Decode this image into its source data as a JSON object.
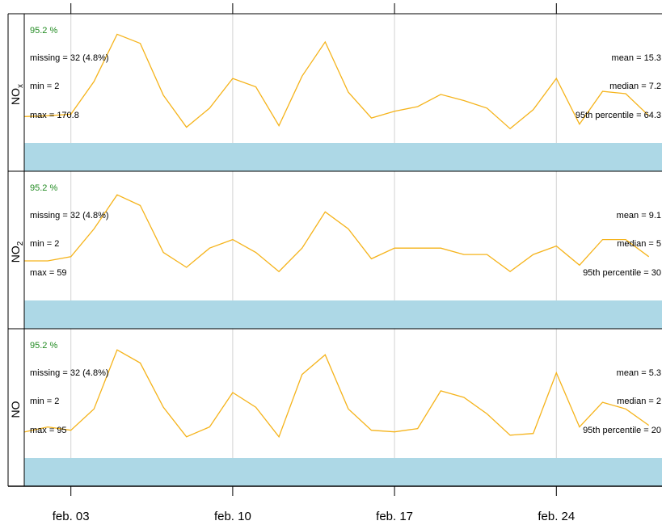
{
  "chart_data": {
    "type": "line",
    "x_unit": "date",
    "x_ticks": [
      {
        "x": "2022-02-03",
        "label": "feb. 03"
      },
      {
        "x": "2022-02-10",
        "label": "feb. 10"
      },
      {
        "x": "2022-02-17",
        "label": "feb. 17"
      },
      {
        "x": "2022-02-24",
        "label": "feb. 24"
      }
    ],
    "x_range": [
      "2022-02-01",
      "2022-02-28"
    ],
    "grid": true,
    "colors": {
      "line": "#f5b31a",
      "missing_bar": "#add8e6",
      "pct_text": "#228b22",
      "grid": "#d3d3d3"
    },
    "panels": [
      {
        "name": "NO",
        "sub": "x",
        "coverage": "95.2 %",
        "stats_left": [
          "missing = 32 (4.8%)",
          "min = 2",
          "max = 170.8"
        ],
        "stats_right": [
          "mean = 15.3",
          "median = 7.2",
          "95th percentile = 64.3"
        ],
        "series": {
          "name": "NOx",
          "points": [
            {
              "x": "2022-02-01",
              "y": 22
            },
            {
              "x": "2022-02-02",
              "y": 23
            },
            {
              "x": "2022-02-03",
              "y": 25
            },
            {
              "x": "2022-02-04",
              "y": 68
            },
            {
              "x": "2022-02-05",
              "y": 130
            },
            {
              "x": "2022-02-06",
              "y": 118
            },
            {
              "x": "2022-02-07",
              "y": 50
            },
            {
              "x": "2022-02-08",
              "y": 8
            },
            {
              "x": "2022-02-09",
              "y": 33
            },
            {
              "x": "2022-02-10",
              "y": 72
            },
            {
              "x": "2022-02-11",
              "y": 61
            },
            {
              "x": "2022-02-12",
              "y": 10
            },
            {
              "x": "2022-02-13",
              "y": 75
            },
            {
              "x": "2022-02-14",
              "y": 120
            },
            {
              "x": "2022-02-15",
              "y": 54
            },
            {
              "x": "2022-02-16",
              "y": 20
            },
            {
              "x": "2022-02-17",
              "y": 29
            },
            {
              "x": "2022-02-18",
              "y": 35
            },
            {
              "x": "2022-02-19",
              "y": 51
            },
            {
              "x": "2022-02-20",
              "y": 43
            },
            {
              "x": "2022-02-21",
              "y": 33
            },
            {
              "x": "2022-02-22",
              "y": 6
            },
            {
              "x": "2022-02-23",
              "y": 31
            },
            {
              "x": "2022-02-24",
              "y": 72
            },
            {
              "x": "2022-02-25",
              "y": 12
            },
            {
              "x": "2022-02-26",
              "y": 55
            },
            {
              "x": "2022-02-27",
              "y": 52
            },
            {
              "x": "2022-02-28",
              "y": 23
            }
          ]
        }
      },
      {
        "name": "NO",
        "sub": "2",
        "coverage": "95.2 %",
        "stats_left": [
          "missing = 32 (4.8%)",
          "min = 2",
          "max = 59"
        ],
        "stats_right": [
          "mean = 9.1",
          "median = 5",
          "95th percentile = 30"
        ],
        "series": {
          "name": "NO2",
          "points": [
            {
              "x": "2022-02-01",
              "y": 14
            },
            {
              "x": "2022-02-02",
              "y": 14
            },
            {
              "x": "2022-02-03",
              "y": 16
            },
            {
              "x": "2022-02-04",
              "y": 29
            },
            {
              "x": "2022-02-05",
              "y": 45
            },
            {
              "x": "2022-02-06",
              "y": 40
            },
            {
              "x": "2022-02-07",
              "y": 18
            },
            {
              "x": "2022-02-08",
              "y": 11
            },
            {
              "x": "2022-02-09",
              "y": 20
            },
            {
              "x": "2022-02-10",
              "y": 24
            },
            {
              "x": "2022-02-11",
              "y": 18
            },
            {
              "x": "2022-02-12",
              "y": 9
            },
            {
              "x": "2022-02-13",
              "y": 20
            },
            {
              "x": "2022-02-14",
              "y": 37
            },
            {
              "x": "2022-02-15",
              "y": 29
            },
            {
              "x": "2022-02-16",
              "y": 15
            },
            {
              "x": "2022-02-17",
              "y": 20
            },
            {
              "x": "2022-02-18",
              "y": 20
            },
            {
              "x": "2022-02-19",
              "y": 20
            },
            {
              "x": "2022-02-20",
              "y": 17
            },
            {
              "x": "2022-02-21",
              "y": 17
            },
            {
              "x": "2022-02-22",
              "y": 9
            },
            {
              "x": "2022-02-23",
              "y": 17
            },
            {
              "x": "2022-02-24",
              "y": 21
            },
            {
              "x": "2022-02-25",
              "y": 12
            },
            {
              "x": "2022-02-26",
              "y": 24
            },
            {
              "x": "2022-02-27",
              "y": 24
            },
            {
              "x": "2022-02-28",
              "y": 16
            }
          ]
        }
      },
      {
        "name": "NO",
        "sub": "",
        "coverage": "95.2 %",
        "stats_left": [
          "missing = 32 (4.8%)",
          "min = 2",
          "max = 95"
        ],
        "stats_right": [
          "mean = 5.3",
          "median = 2",
          "95th percentile = 20"
        ],
        "series": {
          "name": "NO",
          "points": [
            {
              "x": "2022-02-01",
              "y": 10
            },
            {
              "x": "2022-02-02",
              "y": 13
            },
            {
              "x": "2022-02-03",
              "y": 11
            },
            {
              "x": "2022-02-04",
              "y": 24
            },
            {
              "x": "2022-02-05",
              "y": 60
            },
            {
              "x": "2022-02-06",
              "y": 52
            },
            {
              "x": "2022-02-07",
              "y": 25
            },
            {
              "x": "2022-02-08",
              "y": 7
            },
            {
              "x": "2022-02-09",
              "y": 13
            },
            {
              "x": "2022-02-10",
              "y": 34
            },
            {
              "x": "2022-02-11",
              "y": 25
            },
            {
              "x": "2022-02-12",
              "y": 7
            },
            {
              "x": "2022-02-13",
              "y": 45
            },
            {
              "x": "2022-02-14",
              "y": 57
            },
            {
              "x": "2022-02-15",
              "y": 24
            },
            {
              "x": "2022-02-16",
              "y": 11
            },
            {
              "x": "2022-02-17",
              "y": 10
            },
            {
              "x": "2022-02-18",
              "y": 12
            },
            {
              "x": "2022-02-19",
              "y": 35
            },
            {
              "x": "2022-02-20",
              "y": 31
            },
            {
              "x": "2022-02-21",
              "y": 21
            },
            {
              "x": "2022-02-22",
              "y": 8
            },
            {
              "x": "2022-02-23",
              "y": 9
            },
            {
              "x": "2022-02-24",
              "y": 46
            },
            {
              "x": "2022-02-25",
              "y": 13
            },
            {
              "x": "2022-02-26",
              "y": 28
            },
            {
              "x": "2022-02-27",
              "y": 24
            },
            {
              "x": "2022-02-28",
              "y": 14
            }
          ]
        }
      }
    ]
  }
}
